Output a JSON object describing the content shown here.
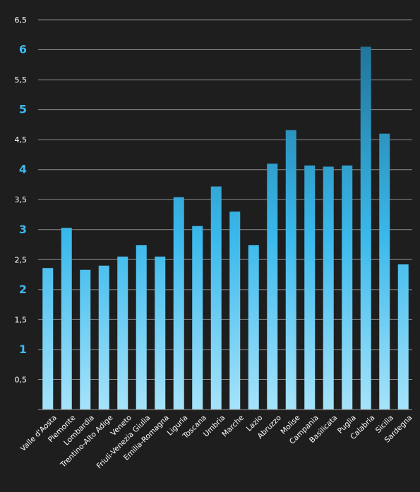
{
  "chart_data": {
    "type": "bar",
    "title": "",
    "xlabel": "",
    "ylabel": "",
    "ylim": [
      0,
      6.5
    ],
    "grid": true,
    "legend": "none",
    "y_ticks": [
      {
        "value": 0.5,
        "label": "0,5",
        "major": false
      },
      {
        "value": 1,
        "label": "1",
        "major": true
      },
      {
        "value": 1.5,
        "label": "1,5",
        "major": false
      },
      {
        "value": 2,
        "label": "2",
        "major": true
      },
      {
        "value": 2.5,
        "label": "2,5",
        "major": false
      },
      {
        "value": 3,
        "label": "3",
        "major": true
      },
      {
        "value": 3.5,
        "label": "3,5",
        "major": false
      },
      {
        "value": 4,
        "label": "4",
        "major": true
      },
      {
        "value": 4.5,
        "label": "4,5",
        "major": false
      },
      {
        "value": 5,
        "label": "5",
        "major": true
      },
      {
        "value": 5.5,
        "label": "5,5",
        "major": false
      },
      {
        "value": 6,
        "label": "6",
        "major": true
      },
      {
        "value": 6.5,
        "label": "6,5",
        "major": false
      }
    ],
    "categories": [
      "Valle d'Aosta",
      "Piemonte",
      "Lombardia",
      "Trentino-Alto Adige",
      "Veneto",
      "Friuli-Venezia Giulia",
      "Emilia-Romagna",
      "Liguria",
      "Toscana",
      "Umbria",
      "Marche",
      "Lazio",
      "Abruzzo",
      "Molise",
      "Campania",
      "Basilicata",
      "Puglia",
      "Calabria",
      "Sicilia",
      "Sardegna"
    ],
    "values": [
      2.36,
      3.03,
      2.33,
      2.4,
      2.55,
      2.74,
      2.55,
      3.54,
      3.06,
      3.72,
      3.3,
      2.74,
      4.1,
      4.66,
      4.07,
      4.05,
      4.07,
      6.05,
      4.6,
      2.42
    ],
    "colors": {
      "bar_top": "#1f6f93",
      "bar_mid": "#3ab9ec",
      "bar_bottom": "#a6e3fa",
      "major_tick": "#3cb9ee",
      "minor_tick": "#ffffff",
      "grid": "#8a8a8a",
      "background": "#1e1e1e"
    }
  }
}
